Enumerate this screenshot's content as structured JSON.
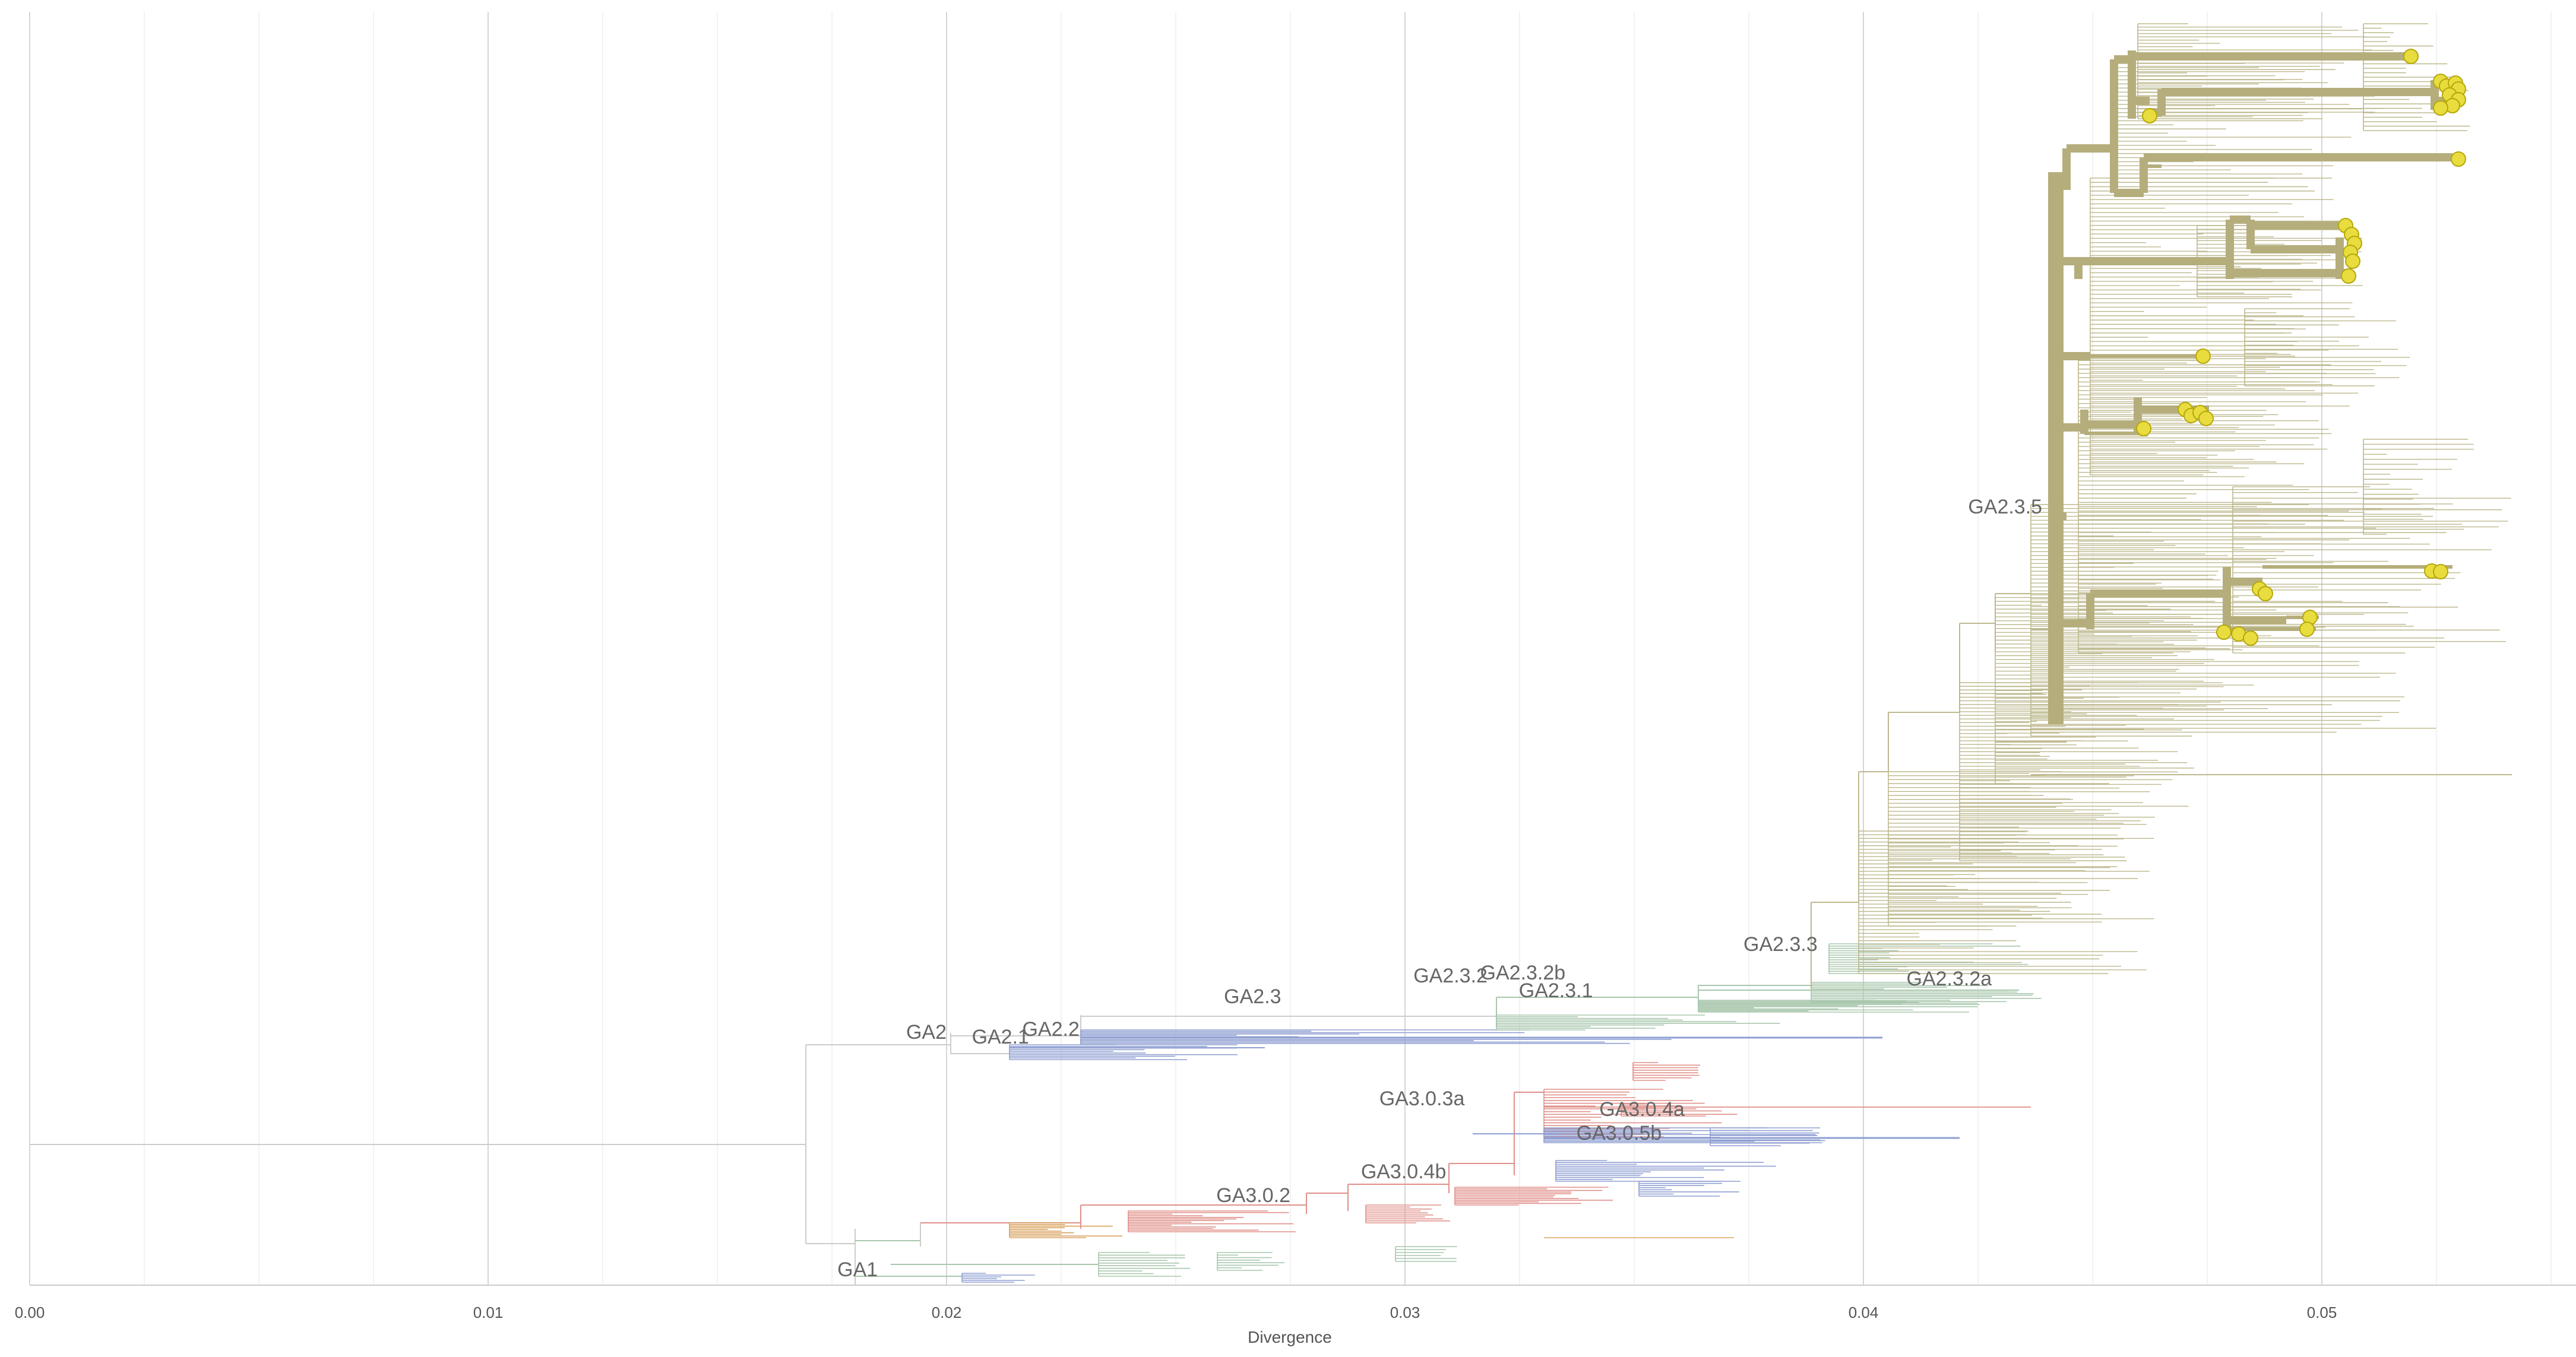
{
  "chart_data": {
    "type": "phylogenetic-tree",
    "xlabel": "Divergence",
    "xlim": [
      0.0,
      0.0555
    ],
    "ticks": [
      {
        "value": 0.0,
        "label": "0.00"
      },
      {
        "value": 0.01,
        "label": "0.01"
      },
      {
        "value": 0.02,
        "label": "0.02"
      },
      {
        "value": 0.03,
        "label": "0.03"
      },
      {
        "value": 0.04,
        "label": "0.04"
      },
      {
        "value": 0.05,
        "label": "0.05"
      }
    ],
    "minor_grid_step": 0.0025,
    "clade_labels": [
      {
        "name": "GA1",
        "divergence": 0.0185
      },
      {
        "name": "GA2",
        "divergence": 0.02
      },
      {
        "name": "GA2.1",
        "divergence": 0.0218
      },
      {
        "name": "GA2.2",
        "divergence": 0.0229
      },
      {
        "name": "GA2.3",
        "divergence": 0.0273
      },
      {
        "name": "GA2.3.2",
        "divergence": 0.0318
      },
      {
        "name": "GA2.3.2b",
        "divergence": 0.0335
      },
      {
        "name": "GA2.3.1",
        "divergence": 0.0341
      },
      {
        "name": "GA2.3.3",
        "divergence": 0.039
      },
      {
        "name": "GA2.3.2a",
        "divergence": 0.0428
      },
      {
        "name": "GA2.3.5",
        "divergence": 0.0439
      },
      {
        "name": "GA3.0.2",
        "divergence": 0.0275
      },
      {
        "name": "GA3.0.3a",
        "divergence": 0.0313
      },
      {
        "name": "GA3.0.4a",
        "divergence": 0.0361
      },
      {
        "name": "GA3.0.4b",
        "divergence": 0.0309
      },
      {
        "name": "GA3.0.5b",
        "divergence": 0.0356
      }
    ],
    "colors": {
      "ga2_3_5": "#bdb88e",
      "ga2_3_5_highlight": "#b5ae7c",
      "ga2_3_x": "#a9c7ad",
      "ga2_blue": "#8f9fd2",
      "ga3_red": "#e0908a",
      "ga3_blue": "#8f9fd2",
      "ga1_mix": "#a9c7ad",
      "root": "#cccccc",
      "tip_marker": "#e8dc3f",
      "tip_marker_stroke": "#b5a80a",
      "grid_major": "#d6d6d6",
      "grid_minor": "#eeeeee",
      "axis_line": "#cccccc"
    }
  }
}
